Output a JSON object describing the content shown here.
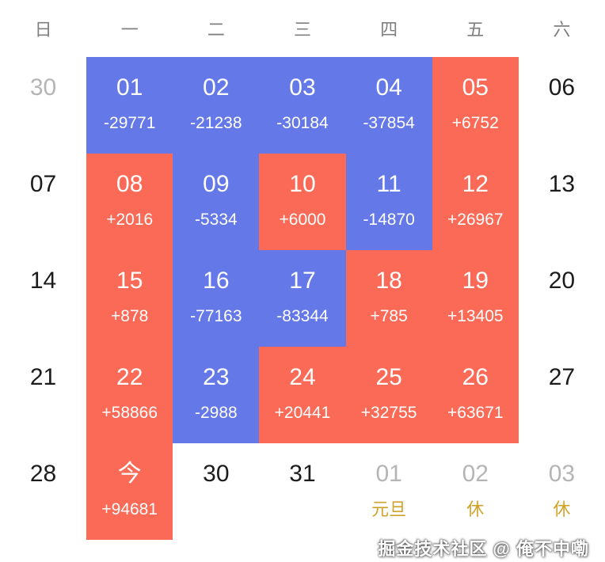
{
  "weekdays": [
    "日",
    "一",
    "二",
    "三",
    "四",
    "五",
    "六"
  ],
  "colors": {
    "profit_red": "#fa6a56",
    "loss_blue": "#6478e8",
    "muted_gray": "#b5b5b5",
    "holiday_gold": "#d0a32a"
  },
  "cells": [
    {
      "day": "30",
      "value": "",
      "type": "muted"
    },
    {
      "day": "01",
      "value": "-29771",
      "type": "loss"
    },
    {
      "day": "02",
      "value": "-21238",
      "type": "loss"
    },
    {
      "day": "03",
      "value": "-30184",
      "type": "loss"
    },
    {
      "day": "04",
      "value": "-37854",
      "type": "loss"
    },
    {
      "day": "05",
      "value": "+6752",
      "type": "profit"
    },
    {
      "day": "06",
      "value": "",
      "type": "plain"
    },
    {
      "day": "07",
      "value": "",
      "type": "plain"
    },
    {
      "day": "08",
      "value": "+2016",
      "type": "profit"
    },
    {
      "day": "09",
      "value": "-5334",
      "type": "loss"
    },
    {
      "day": "10",
      "value": "+6000",
      "type": "profit"
    },
    {
      "day": "11",
      "value": "-14870",
      "type": "loss"
    },
    {
      "day": "12",
      "value": "+26967",
      "type": "profit"
    },
    {
      "day": "13",
      "value": "",
      "type": "plain"
    },
    {
      "day": "14",
      "value": "",
      "type": "plain"
    },
    {
      "day": "15",
      "value": "+878",
      "type": "profit"
    },
    {
      "day": "16",
      "value": "-77163",
      "type": "loss"
    },
    {
      "day": "17",
      "value": "-83344",
      "type": "loss"
    },
    {
      "day": "18",
      "value": "+785",
      "type": "profit"
    },
    {
      "day": "19",
      "value": "+13405",
      "type": "profit"
    },
    {
      "day": "20",
      "value": "",
      "type": "plain"
    },
    {
      "day": "21",
      "value": "",
      "type": "plain"
    },
    {
      "day": "22",
      "value": "+58866",
      "type": "profit"
    },
    {
      "day": "23",
      "value": "-2988",
      "type": "loss"
    },
    {
      "day": "24",
      "value": "+20441",
      "type": "profit"
    },
    {
      "day": "25",
      "value": "+32755",
      "type": "profit"
    },
    {
      "day": "26",
      "value": "+63671",
      "type": "profit"
    },
    {
      "day": "27",
      "value": "",
      "type": "plain"
    },
    {
      "day": "28",
      "value": "",
      "type": "plain"
    },
    {
      "day": "今",
      "value": "+94681",
      "type": "profit"
    },
    {
      "day": "30",
      "value": "",
      "type": "plain"
    },
    {
      "day": "31",
      "value": "",
      "type": "plain"
    },
    {
      "day": "01",
      "value": "元旦",
      "type": "holiday"
    },
    {
      "day": "02",
      "value": "休",
      "type": "holiday"
    },
    {
      "day": "03",
      "value": "休",
      "type": "holiday"
    }
  ],
  "watermark": "掘金技术社区 @ 俺不中嘞"
}
